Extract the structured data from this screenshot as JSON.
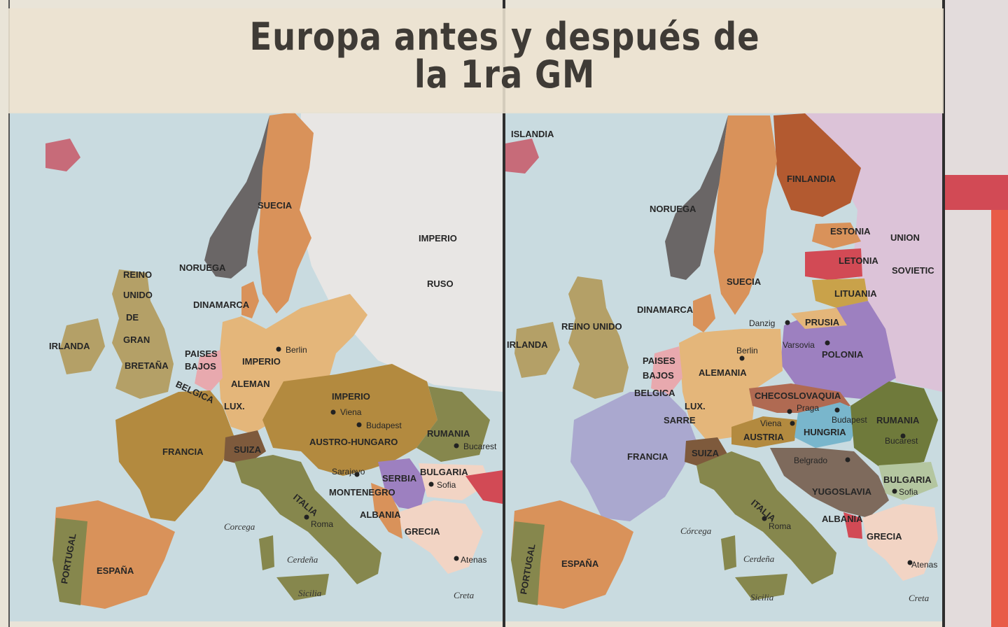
{
  "title": {
    "line1": "Europa antes y después de",
    "line2": "la 1ra GM"
  },
  "colors": {
    "sea": "#c9dbe0",
    "land_outside": "#e8e6e4",
    "russia_before": "#e8e6e4",
    "ussr_after": "#dcc3d8",
    "ochre": "#b38a3f",
    "orange": "#d9925a",
    "tan": "#b4a067",
    "green": "#86874d",
    "brown": "#7e5a3c",
    "gray": "#6a6666",
    "lavender": "#aaa8cf",
    "purple": "#9d80c0",
    "red": "#d24a55",
    "pink": "#e8a9ae",
    "teal": "#79b6cc",
    "olive": "#6f7a3b",
    "rust": "#b35a30"
  },
  "map_before": {
    "countries": [
      "SUECIA",
      "NORUEGA",
      "IMPERIO",
      "RUSO",
      "REINO",
      "UNIDO",
      "DE",
      "GRAN",
      "BRETAÑA",
      "IRLANDA",
      "DINAMARCA",
      "PAISES",
      "BAJOS",
      "BELGICA",
      "LUX.",
      "IMPERIO",
      "ALEMAN",
      "FRANCIA",
      "SUIZA",
      "IMPERIO",
      "AUSTRO-HUNGARO",
      "RUMANIA",
      "BULGARIA",
      "SERBIA",
      "MONTENEGRO",
      "ALBANIA",
      "GRECIA",
      "ITALIA",
      "ESPAÑA",
      "PORTUGAL"
    ],
    "cities": [
      "Berlin",
      "Viena",
      "Budapest",
      "Bucarest",
      "Sarajevo",
      "Sofia",
      "Roma",
      "Atenas",
      "Creta"
    ],
    "islands": [
      "Corcega",
      "Cerdeña",
      "Sicilia"
    ]
  },
  "map_after": {
    "countries": [
      "ISLANDIA",
      "NORUEGA",
      "SUECIA",
      "FINLANDIA",
      "ESTONIA",
      "LETONIA",
      "LITUANIA",
      "UNION",
      "SOVIETIC",
      "PRUSIA",
      "POLONIA",
      "REINO UNIDO",
      "IRLANDA",
      "DINAMARCA",
      "PAISES",
      "BAJOS",
      "BELGICA",
      "LUX.",
      "SARRE",
      "ALEMANIA",
      "CHECOSLOVAQUIA",
      "AUSTRIA",
      "HUNGRIA",
      "RUMANIA",
      "FRANCIA",
      "SUIZA",
      "YUGOSLAVIA",
      "BULGARIA",
      "ALBANIA",
      "GRECIA",
      "ITALIA",
      "ESPAÑA",
      "PORTUGAL"
    ],
    "cities": [
      "Danzig",
      "Berlin",
      "Varsovia",
      "Praga",
      "Viena",
      "Budapest",
      "Bucarest",
      "Belgrado",
      "Sofia",
      "Roma",
      "Atenas",
      "Creta"
    ],
    "islands": [
      "Córcega",
      "Cerdeña",
      "Sicilia"
    ]
  }
}
